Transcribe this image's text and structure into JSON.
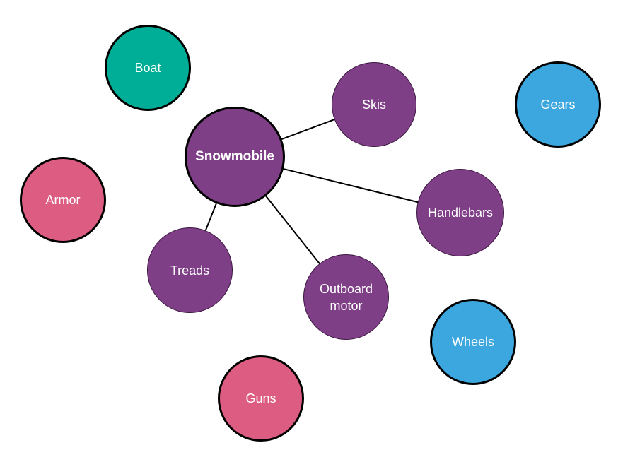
{
  "colors": {
    "purple": "#7f3f87",
    "teal": "#00ae97",
    "pink": "#dd5c82",
    "blue": "#3ca6de",
    "outline": "#000000",
    "edge": "#000000"
  },
  "nodes": {
    "snowmobile": {
      "label": "Snowmobile",
      "color": "#7f3f87"
    },
    "skis": {
      "label": "Skis",
      "color": "#7f3f87"
    },
    "handlebars": {
      "label": "Handlebars",
      "color": "#7f3f87"
    },
    "treads": {
      "label": "Treads",
      "color": "#7f3f87"
    },
    "outboard_motor": {
      "label": "Outboard\nmotor",
      "color": "#7f3f87"
    },
    "boat": {
      "label": "Boat",
      "color": "#00ae97"
    },
    "armor": {
      "label": "Armor",
      "color": "#dd5c82"
    },
    "guns": {
      "label": "Guns",
      "color": "#dd5c82"
    },
    "gears": {
      "label": "Gears",
      "color": "#3ca6de"
    },
    "wheels": {
      "label": "Wheels",
      "color": "#3ca6de"
    }
  },
  "edges": [
    {
      "from": "snowmobile",
      "to": "skis"
    },
    {
      "from": "snowmobile",
      "to": "handlebars"
    },
    {
      "from": "snowmobile",
      "to": "treads"
    },
    {
      "from": "snowmobile",
      "to": "outboard_motor"
    }
  ]
}
